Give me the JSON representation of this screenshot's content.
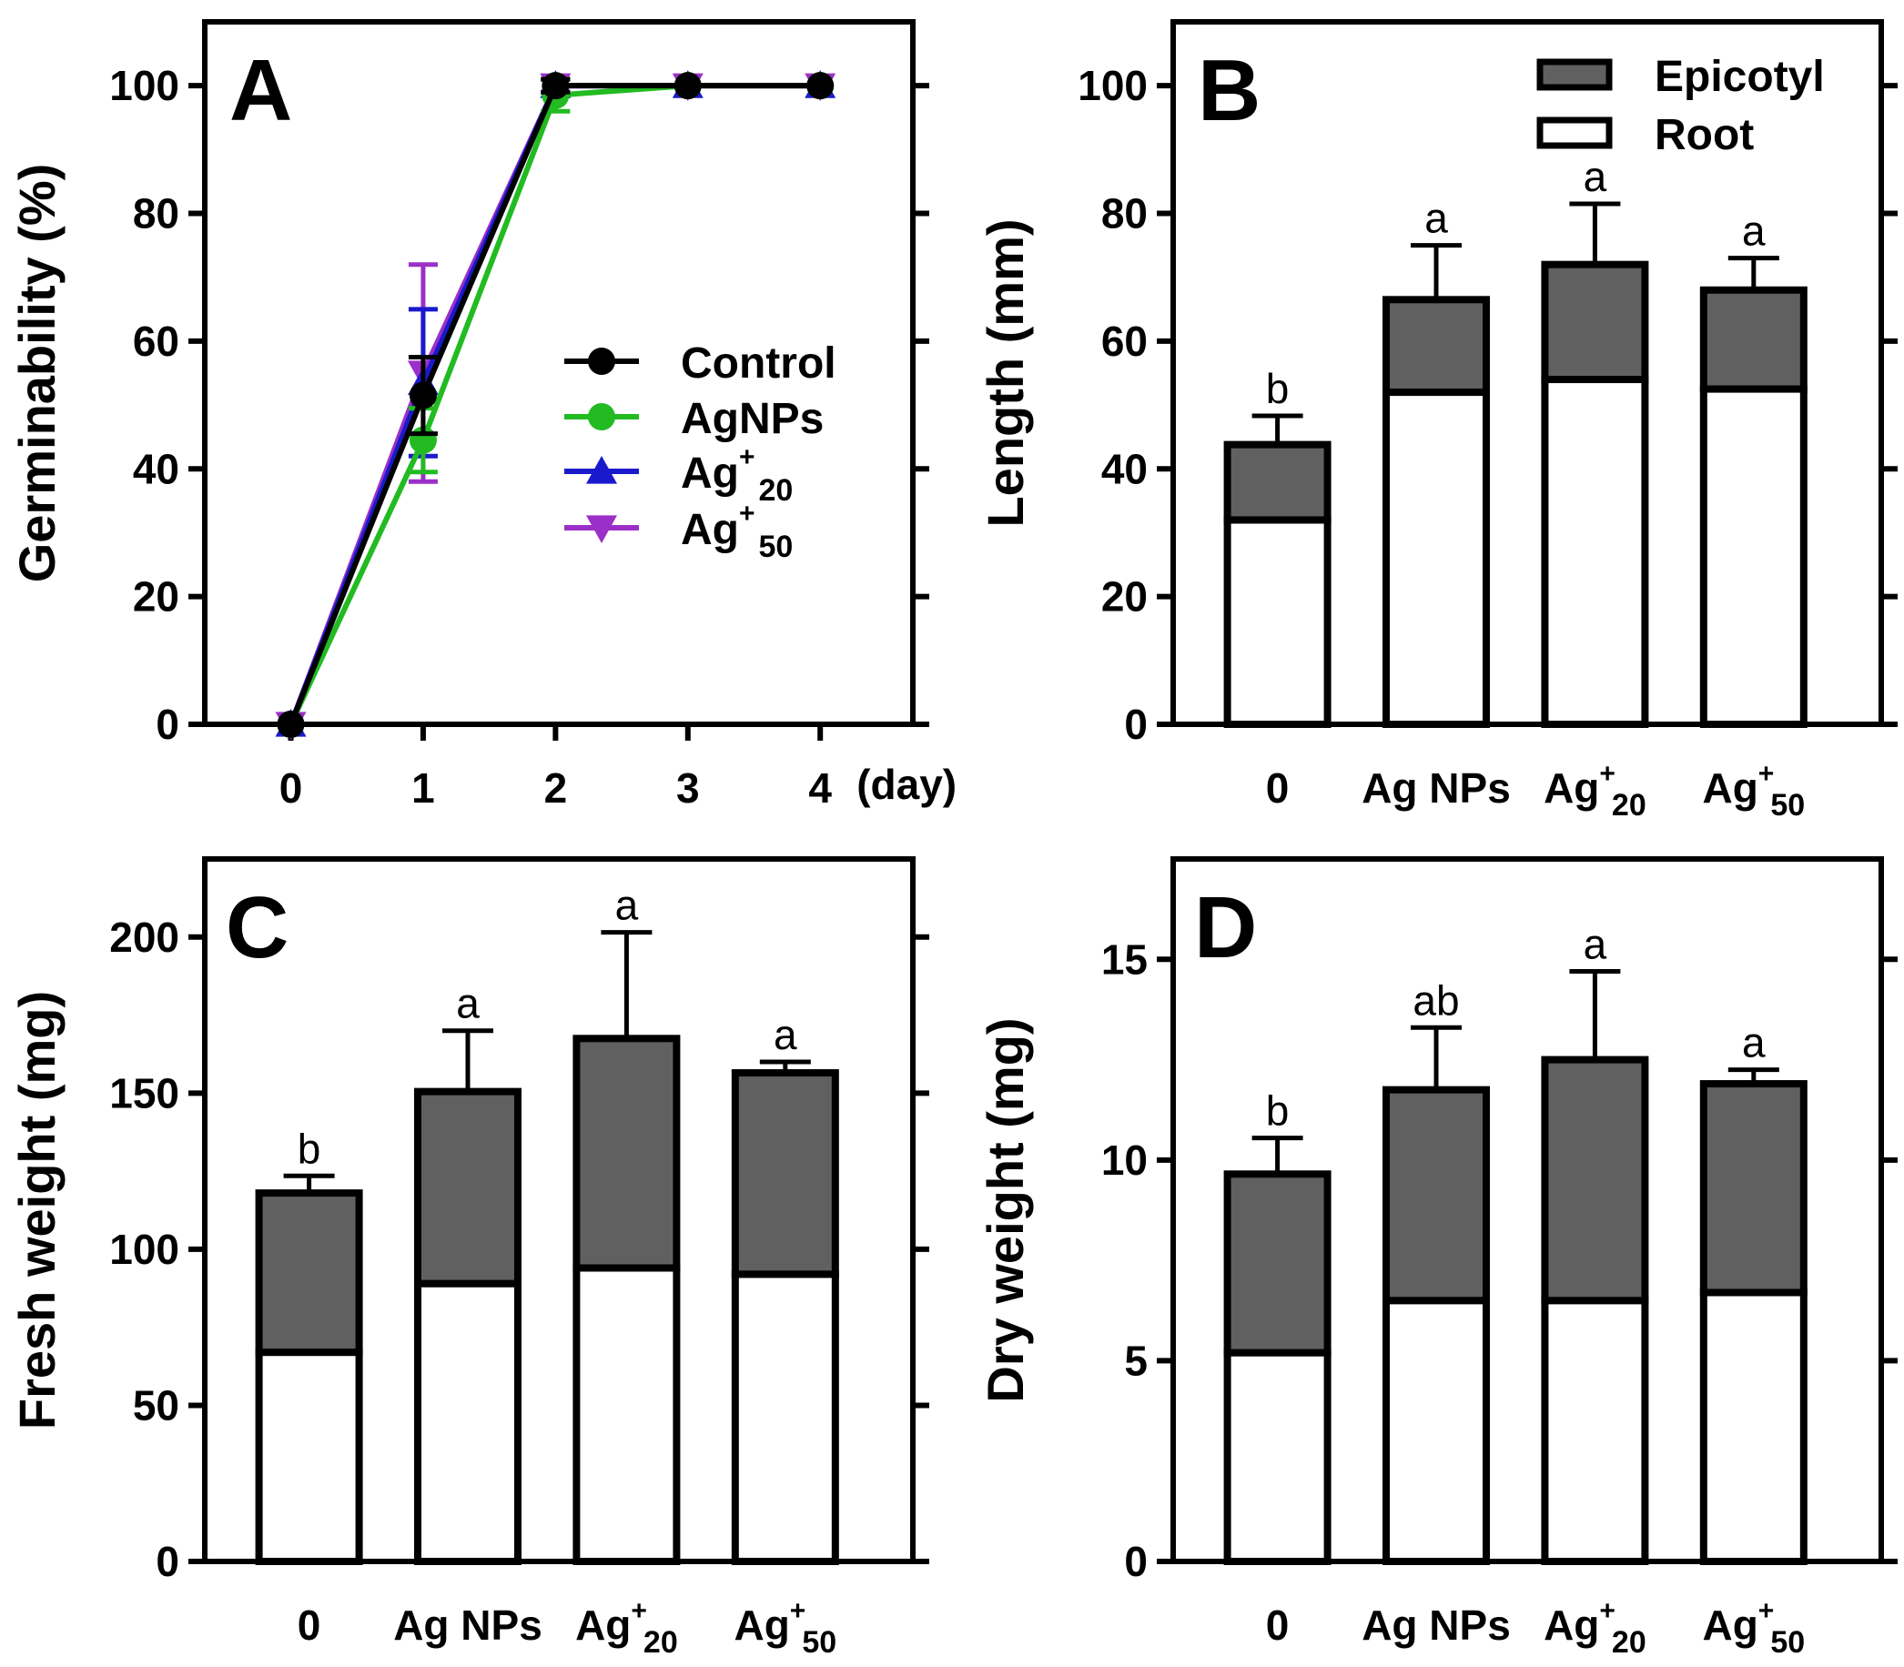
{
  "chart_data": [
    {
      "panel": "A",
      "type": "line",
      "ylabel": "Germinability (%)",
      "xunit": "(day)",
      "x": [
        0,
        1,
        2,
        3,
        4
      ],
      "xlim": [
        -0.65,
        4.7
      ],
      "ylim": [
        0,
        110
      ],
      "yticks": [
        0,
        20,
        40,
        60,
        80,
        100
      ],
      "xticks": [
        0,
        1,
        2,
        3,
        4
      ],
      "legend_position": "center-right",
      "series": [
        {
          "name": "Control",
          "sub": "",
          "sup": "",
          "marker": "circle",
          "color": "#000000",
          "values": [
            0,
            51.5,
            100,
            100,
            100
          ],
          "errors": [
            0,
            6,
            1,
            0,
            0
          ]
        },
        {
          "name": "AgNPs",
          "sub": "",
          "sup": "",
          "marker": "circle",
          "color": "#22bb22",
          "values": [
            0,
            44.5,
            98.5,
            100,
            100
          ],
          "errors": [
            0,
            5,
            2.5,
            0,
            0
          ]
        },
        {
          "name": "Ag",
          "sub": "20",
          "sup": "+",
          "marker": "triangle-up",
          "color": "#1a1acc",
          "values": [
            0,
            53.5,
            100,
            100,
            100
          ],
          "errors": [
            0,
            11.5,
            1,
            0,
            0
          ]
        },
        {
          "name": "Ag",
          "sub": "50",
          "sup": "+",
          "marker": "triangle-down",
          "color": "#9b30c8",
          "values": [
            0,
            55,
            100,
            100,
            100
          ],
          "errors": [
            0,
            17,
            1,
            0,
            0
          ]
        }
      ]
    },
    {
      "panel": "B",
      "type": "bar",
      "stacked": true,
      "ylabel": "Length (mm)",
      "ylim": [
        0,
        110
      ],
      "yticks": [
        0,
        20,
        40,
        60,
        80,
        100
      ],
      "categories": [
        {
          "main": "0",
          "sup": "",
          "sub": ""
        },
        {
          "main": "Ag NPs",
          "sup": "",
          "sub": ""
        },
        {
          "main": "Ag",
          "sup": "+",
          "sub": "20"
        },
        {
          "main": "Ag",
          "sup": "+",
          "sub": "50"
        }
      ],
      "legend_position": "top-right",
      "series": [
        {
          "name": "Root",
          "color": "#ffffff",
          "values": [
            32,
            52,
            54,
            52.5
          ]
        },
        {
          "name": "Epicotyl",
          "color": "#606060",
          "values": [
            11.8,
            14.5,
            18,
            15.5
          ]
        }
      ],
      "totals": [
        43.8,
        66.5,
        72,
        68
      ],
      "errors": [
        4.5,
        8.5,
        9.5,
        5
      ],
      "significance": [
        "b",
        "a",
        "a",
        "a"
      ]
    },
    {
      "panel": "C",
      "type": "bar",
      "stacked": true,
      "ylabel": "Fresh weight (mg)",
      "ylim": [
        0,
        225
      ],
      "yticks": [
        0,
        50,
        100,
        150,
        200
      ],
      "categories": [
        {
          "main": "0",
          "sup": "",
          "sub": ""
        },
        {
          "main": "Ag NPs",
          "sup": "",
          "sub": ""
        },
        {
          "main": "Ag",
          "sup": "+",
          "sub": "20"
        },
        {
          "main": "Ag",
          "sup": "+",
          "sub": "50"
        }
      ],
      "series": [
        {
          "name": "Root",
          "color": "#ffffff",
          "values": [
            67,
            89,
            94,
            92
          ]
        },
        {
          "name": "Epicotyl",
          "color": "#606060",
          "values": [
            51,
            61.5,
            73.5,
            64.5
          ]
        }
      ],
      "totals": [
        118,
        150.5,
        167.5,
        156.5
      ],
      "errors": [
        5.5,
        19.5,
        34,
        3.5
      ],
      "significance": [
        "b",
        "a",
        "a",
        "a"
      ]
    },
    {
      "panel": "D",
      "type": "bar",
      "stacked": true,
      "ylabel": "Dry weight (mg)",
      "ylim": [
        0,
        17.5
      ],
      "yticks": [
        0,
        5,
        10,
        15
      ],
      "categories": [
        {
          "main": "0",
          "sup": "",
          "sub": ""
        },
        {
          "main": "Ag NPs",
          "sup": "",
          "sub": ""
        },
        {
          "main": "Ag",
          "sup": "+",
          "sub": "20"
        },
        {
          "main": "Ag",
          "sup": "+",
          "sub": "50"
        }
      ],
      "series": [
        {
          "name": "Root",
          "color": "#ffffff",
          "values": [
            5.2,
            6.5,
            6.5,
            6.7
          ]
        },
        {
          "name": "Epicotyl",
          "color": "#606060",
          "values": [
            4.45,
            5.25,
            6,
            5.2
          ]
        }
      ],
      "totals": [
        9.65,
        11.75,
        12.5,
        11.9
      ],
      "errors": [
        0.9,
        1.55,
        2.2,
        0.35
      ],
      "significance": [
        "b",
        "ab",
        "a",
        "a"
      ]
    }
  ]
}
